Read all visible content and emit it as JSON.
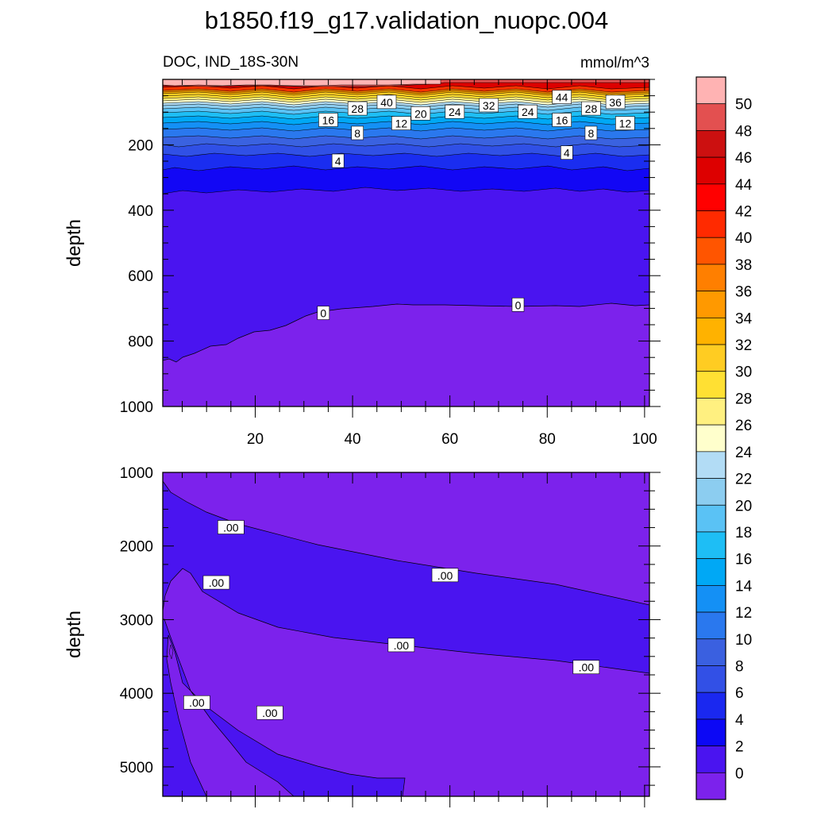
{
  "chart_data": [
    {
      "type": "contour",
      "title": "b1850.f19_g17.validation_nuopc.004",
      "left_label": "DOC, IND_18S-30N",
      "right_label": "mmol/m^3",
      "ylabel": "depth",
      "xlim": [
        1,
        101
      ],
      "ylim": [
        1000,
        0
      ],
      "xticks": [
        20,
        40,
        60,
        80,
        100
      ],
      "yticks": [
        200,
        400,
        600,
        800,
        1000
      ],
      "contour_labels": [
        {
          "text": "40",
          "x": 47,
          "y": 70
        },
        {
          "text": "44",
          "x": 83,
          "y": 55
        },
        {
          "text": "36",
          "x": 94,
          "y": 70
        },
        {
          "text": "28",
          "x": 41,
          "y": 90
        },
        {
          "text": "32",
          "x": 68,
          "y": 80
        },
        {
          "text": "28",
          "x": 89,
          "y": 90
        },
        {
          "text": "20",
          "x": 54,
          "y": 105
        },
        {
          "text": "24",
          "x": 61,
          "y": 100
        },
        {
          "text": "24",
          "x": 76,
          "y": 100
        },
        {
          "text": "16",
          "x": 35,
          "y": 125
        },
        {
          "text": "12",
          "x": 50,
          "y": 135
        },
        {
          "text": "16",
          "x": 83,
          "y": 125
        },
        {
          "text": "12",
          "x": 96,
          "y": 135
        },
        {
          "text": "8",
          "x": 41,
          "y": 165
        },
        {
          "text": "8",
          "x": 89,
          "y": 165
        },
        {
          "text": "4",
          "x": 37,
          "y": 250
        },
        {
          "text": "4",
          "x": 84,
          "y": 225
        },
        {
          "text": "0",
          "x": 34,
          "y": 715
        },
        {
          "text": "0",
          "x": 74,
          "y": 690
        }
      ]
    },
    {
      "type": "contour",
      "ylabel": "depth",
      "xlim": [
        1,
        101
      ],
      "ylim": [
        5400,
        1000
      ],
      "yticks": [
        1000,
        2000,
        3000,
        4000,
        5000
      ],
      "contour_labels": [
        {
          "text": ".00",
          "x": 15,
          "y": 1750
        },
        {
          "text": ".00",
          "x": 12,
          "y": 2500
        },
        {
          "text": ".00",
          "x": 59,
          "y": 2400
        },
        {
          "text": ".00",
          "x": 50,
          "y": 3350
        },
        {
          "text": ".00",
          "x": 88,
          "y": 3650
        },
        {
          "text": ".00",
          "x": 8,
          "y": 4130
        },
        {
          "text": ".00",
          "x": 23,
          "y": 4270
        }
      ]
    }
  ],
  "colorbar": {
    "labels": [
      "50",
      "48",
      "46",
      "44",
      "42",
      "40",
      "38",
      "36",
      "34",
      "32",
      "30",
      "28",
      "26",
      "24",
      "22",
      "20",
      "18",
      "16",
      "14",
      "12",
      "10",
      "8",
      "6",
      "4",
      "2",
      "0"
    ],
    "colors": [
      "#ffb3b3",
      "#e35050",
      "#cc1010",
      "#dd0000",
      "#ff0000",
      "#ff2a00",
      "#ff5500",
      "#ff7f00",
      "#ff9900",
      "#ffb200",
      "#ffcc22",
      "#ffe033",
      "#fff080",
      "#ffffcc",
      "#b2dcf5",
      "#8ccdf0",
      "#5ac2f5",
      "#1ebef5",
      "#00a8f5",
      "#1490f5",
      "#2a78ee",
      "#3a60e0",
      "#3250e6",
      "#1a28f0",
      "#0c08f5",
      "#4a14f0",
      "#7c22ec"
    ]
  },
  "colors": {
    "deep_purple": "#7c22ec",
    "mid_blue_purple": "#4a14f0"
  }
}
